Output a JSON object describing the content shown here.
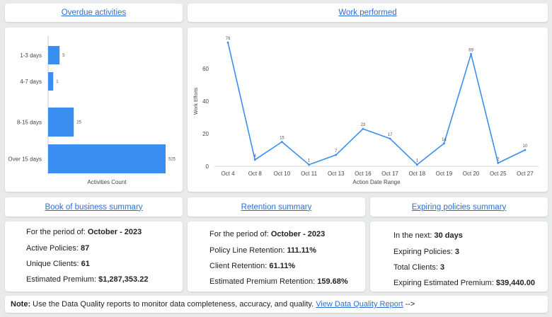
{
  "overdue": {
    "title": "Overdue activities",
    "chart_data": {
      "type": "bar",
      "orientation": "horizontal",
      "categories": [
        "1-3 days",
        "4-7 days",
        "8-15 days",
        "Over 15 days"
      ],
      "values": [
        5,
        1,
        25,
        525
      ],
      "data_labels": [
        "5",
        "1",
        "25",
        "525"
      ],
      "xlabel": "Activities Count",
      "color": "#3a8ef0"
    }
  },
  "work": {
    "title": "Work performed",
    "chart_data": {
      "type": "line",
      "categories": [
        "Oct 4",
        "Oct 8",
        "Oct 10",
        "Oct 11",
        "Oct 13",
        "Oct 16",
        "Oct 17",
        "Oct 18",
        "Oct 19",
        "Oct 20",
        "Oct 25",
        "Oct 27"
      ],
      "values": [
        76,
        4,
        15,
        1,
        7,
        23,
        17,
        1,
        14,
        69,
        2,
        10
      ],
      "data_labels": [
        "76",
        "4",
        "15",
        "1",
        "7",
        "23",
        "17",
        "1",
        "14",
        "69",
        "2",
        "10"
      ],
      "xlabel": "Action Date Range",
      "ylabel": "Work Efforts",
      "yticks": [
        0,
        20,
        40,
        60
      ],
      "ylim": [
        0,
        80
      ],
      "color": "#3a8ef0"
    }
  },
  "book": {
    "title": "Book of business summary",
    "period_label": "For the period of:",
    "period_value": "October - 2023",
    "policies_label": "Active Policies:",
    "policies_value": "87",
    "clients_label": "Unique Clients:",
    "clients_value": "61",
    "premium_label": "Estimated Premium:",
    "premium_value": "$1,287,353.22"
  },
  "retention": {
    "title": "Retention summary",
    "period_label": "For the period of:",
    "period_value": "October - 2023",
    "policy_label": "Policy Line Retention:",
    "policy_value": "111.11%",
    "client_label": "Client Retention:",
    "client_value": "61.11%",
    "premium_label": "Estimated Premium Retention:",
    "premium_value": "159.68%"
  },
  "expiring": {
    "title": "Expiring policies summary",
    "next_label": "In the next:",
    "next_value": "30 days",
    "policies_label": "Expiring Policies:",
    "policies_value": "3",
    "clients_label": "Total Clients:",
    "clients_value": "3",
    "premium_label": "Expiring Estimated Premium:",
    "premium_value": "$39,440.00"
  },
  "note": {
    "label": "Note:",
    "text": " Use the Data Quality reports to monitor data completeness, accuracy, and quality. ",
    "link": "View Data Quality Report",
    "arrow": " -->"
  }
}
